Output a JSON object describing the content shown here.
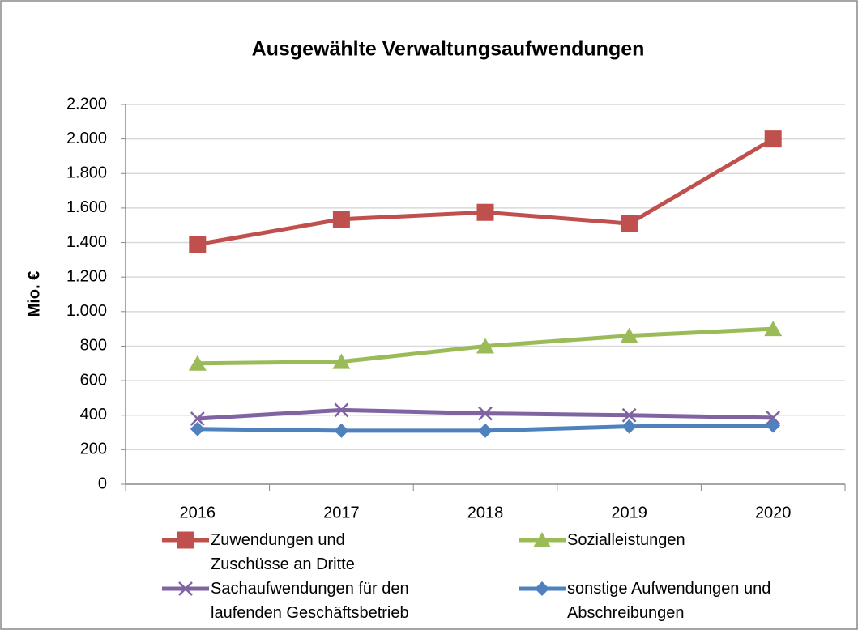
{
  "chart_data": {
    "type": "line",
    "title": "Ausgewählte Verwaltungsaufwendungen",
    "y_label": "Mio. €",
    "categories": [
      "2016",
      "2017",
      "2018",
      "2019",
      "2020"
    ],
    "series": [
      {
        "name": "Zuwendungen und Zuschüsse an Dritte",
        "color": "#c0504d",
        "marker": "square",
        "values": [
          1390,
          1535,
          1575,
          1510,
          2000
        ]
      },
      {
        "name": "Sozialleistungen",
        "color": "#9bbb59",
        "marker": "triangle",
        "values": [
          700,
          710,
          800,
          860,
          900
        ]
      },
      {
        "name": "Sachaufwendungen für den laufenden Geschäftsbetrieb",
        "color": "#8064a2",
        "marker": "x",
        "values": [
          380,
          430,
          410,
          400,
          385
        ]
      },
      {
        "name": "sonstige Aufwendungen und Abschreibungen",
        "color": "#4f81bd",
        "marker": "diamond",
        "values": [
          320,
          310,
          310,
          335,
          340
        ]
      }
    ],
    "ylim": [
      0,
      2200
    ],
    "yticks": [
      0,
      200,
      400,
      600,
      800,
      {
        "value": 1000,
        "label": "1.000"
      },
      {
        "value": 1200,
        "label": "1.200"
      },
      {
        "value": 1400,
        "label": "1.400"
      },
      {
        "value": 1600,
        "label": "1.600"
      },
      {
        "value": 1800,
        "label": "1.800"
      },
      {
        "value": 2000,
        "label": "2.000"
      },
      {
        "value": 2200,
        "label": "2.200"
      }
    ],
    "grid": true,
    "legend": "bottom"
  }
}
